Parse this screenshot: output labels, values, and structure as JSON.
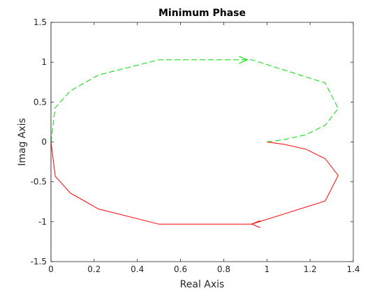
{
  "chart_data": {
    "type": "line",
    "title": "Minimum Phase",
    "xlabel": "Real Axis",
    "ylabel": "Imag Axis",
    "xlim": [
      0,
      1.4
    ],
    "ylim": [
      -1.5,
      1.5
    ],
    "xticks": [
      0,
      0.2,
      0.4,
      0.6,
      0.8,
      1,
      1.2,
      1.4
    ],
    "yticks": [
      -1.5,
      -1,
      -0.5,
      0,
      0.5,
      1,
      1.5
    ],
    "xtick_labels": [
      "0",
      "0.2",
      "0.4",
      "0.6",
      "0.8",
      "1",
      "1.2",
      "1.4"
    ],
    "ytick_labels": [
      "-1.5",
      "-1",
      "-0.5",
      "0",
      "0.5",
      "1",
      "1.5"
    ],
    "grid": false,
    "series": [
      {
        "color": "#00dd00",
        "style": "dashed",
        "x": [
          1.0,
          1.08,
          1.18,
          1.27,
          1.33,
          1.27,
          0.93,
          0.8,
          0.5,
          0.22,
          0.09,
          0.02,
          0.0
        ],
        "y": [
          0.0,
          0.03,
          0.09,
          0.21,
          0.42,
          0.74,
          1.03,
          1.03,
          1.03,
          0.84,
          0.64,
          0.43,
          0.0
        ],
        "arrows": [
          {
            "x": 0.91,
            "y": 1.03,
            "dir": "right"
          }
        ]
      },
      {
        "color": "#ff0000",
        "style": "solid",
        "x": [
          1.0,
          1.08,
          1.18,
          1.27,
          1.33,
          1.27,
          0.93,
          0.8,
          0.5,
          0.22,
          0.09,
          0.02,
          0.0
        ],
        "y": [
          0.0,
          -0.03,
          -0.09,
          -0.21,
          -0.42,
          -0.74,
          -1.03,
          -1.03,
          -1.03,
          -0.84,
          -0.64,
          -0.43,
          0.0
        ],
        "arrows": [
          {
            "x": 0.93,
            "y": -1.03,
            "dir": "left"
          }
        ]
      }
    ]
  }
}
